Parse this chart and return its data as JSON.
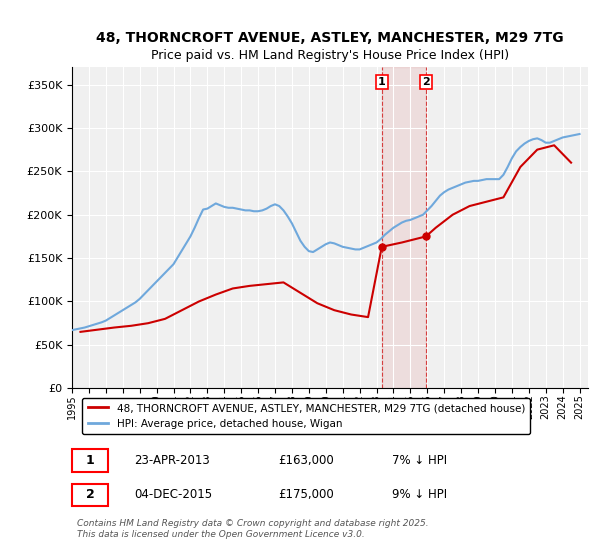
{
  "title_line1": "48, THORNCROFT AVENUE, ASTLEY, MANCHESTER, M29 7TG",
  "title_line2": "Price paid vs. HM Land Registry's House Price Index (HPI)",
  "ylabel": "",
  "yticks": [
    0,
    50000,
    100000,
    150000,
    200000,
    250000,
    300000,
    350000
  ],
  "ytick_labels": [
    "£0",
    "£50K",
    "£100K",
    "£150K",
    "£200K",
    "£250K",
    "£300K",
    "£350K"
  ],
  "xlim_start": 1995.0,
  "xlim_end": 2025.5,
  "ylim_min": 0,
  "ylim_max": 370000,
  "legend_line1": "48, THORNCROFT AVENUE, ASTLEY, MANCHESTER, M29 7TG (detached house)",
  "legend_line2": "HPI: Average price, detached house, Wigan",
  "annotation1_label": "1",
  "annotation1_date": "23-APR-2013",
  "annotation1_price": "£163,000",
  "annotation1_hpi": "7% ↓ HPI",
  "annotation1_year": 2013.31,
  "annotation1_value": 163000,
  "annotation2_label": "2",
  "annotation2_date": "04-DEC-2015",
  "annotation2_price": "£175,000",
  "annotation2_hpi": "9% ↓ HPI",
  "annotation2_year": 2015.92,
  "annotation2_value": 175000,
  "footnote": "Contains HM Land Registry data © Crown copyright and database right 2025.\nThis data is licensed under the Open Government Licence v3.0.",
  "hpi_color": "#6fa8dc",
  "price_color": "#cc0000",
  "background_color": "#ffffff",
  "plot_bg_color": "#f0f0f0",
  "hpi_x": [
    1995,
    1995.25,
    1995.5,
    1995.75,
    1996,
    1996.25,
    1996.5,
    1996.75,
    1997,
    1997.25,
    1997.5,
    1997.75,
    1998,
    1998.25,
    1998.5,
    1998.75,
    1999,
    1999.25,
    1999.5,
    1999.75,
    2000,
    2000.25,
    2000.5,
    2000.75,
    2001,
    2001.25,
    2001.5,
    2001.75,
    2002,
    2002.25,
    2002.5,
    2002.75,
    2003,
    2003.25,
    2003.5,
    2003.75,
    2004,
    2004.25,
    2004.5,
    2004.75,
    2005,
    2005.25,
    2005.5,
    2005.75,
    2006,
    2006.25,
    2006.5,
    2006.75,
    2007,
    2007.25,
    2007.5,
    2007.75,
    2008,
    2008.25,
    2008.5,
    2008.75,
    2009,
    2009.25,
    2009.5,
    2009.75,
    2010,
    2010.25,
    2010.5,
    2010.75,
    2011,
    2011.25,
    2011.5,
    2011.75,
    2012,
    2012.25,
    2012.5,
    2012.75,
    2013,
    2013.25,
    2013.5,
    2013.75,
    2014,
    2014.25,
    2014.5,
    2014.75,
    2015,
    2015.25,
    2015.5,
    2015.75,
    2016,
    2016.25,
    2016.5,
    2016.75,
    2017,
    2017.25,
    2017.5,
    2017.75,
    2018,
    2018.25,
    2018.5,
    2018.75,
    2019,
    2019.25,
    2019.5,
    2019.75,
    2020,
    2020.25,
    2020.5,
    2020.75,
    2021,
    2021.25,
    2021.5,
    2021.75,
    2022,
    2022.25,
    2022.5,
    2022.75,
    2023,
    2023.25,
    2023.5,
    2023.75,
    2024,
    2024.25,
    2024.5,
    2024.75,
    2025
  ],
  "hpi_y": [
    67000,
    68000,
    69000,
    70000,
    71500,
    73000,
    74500,
    76000,
    78000,
    81000,
    84000,
    87000,
    90000,
    93000,
    96000,
    99000,
    103000,
    108000,
    113000,
    118000,
    123000,
    128000,
    133000,
    138000,
    143000,
    151000,
    159000,
    167000,
    175000,
    185000,
    196000,
    206000,
    207000,
    210000,
    213000,
    211000,
    209000,
    208000,
    208000,
    207000,
    206000,
    205000,
    205000,
    204000,
    204000,
    205000,
    207000,
    210000,
    212000,
    210000,
    205000,
    198000,
    190000,
    180000,
    170000,
    163000,
    158000,
    157000,
    160000,
    163000,
    166000,
    168000,
    167000,
    165000,
    163000,
    162000,
    161000,
    160000,
    160000,
    162000,
    164000,
    166000,
    168000,
    172000,
    177000,
    181000,
    185000,
    188000,
    191000,
    193000,
    194000,
    196000,
    198000,
    200000,
    205000,
    210000,
    216000,
    222000,
    226000,
    229000,
    231000,
    233000,
    235000,
    237000,
    238000,
    239000,
    239000,
    240000,
    241000,
    241000,
    241000,
    241000,
    246000,
    255000,
    265000,
    273000,
    278000,
    282000,
    285000,
    287000,
    288000,
    286000,
    283000,
    283000,
    285000,
    287000,
    289000,
    290000,
    291000,
    292000,
    293000
  ],
  "price_x": [
    1995.5,
    1996.5,
    1997.5,
    1998.5,
    1999.5,
    2000.5,
    2001.5,
    2002.5,
    2003.5,
    2004.5,
    2005.5,
    2006.5,
    2007.5,
    2008.5,
    2009.5,
    2010.5,
    2011.5,
    2012.5,
    2013.31,
    2014.5,
    2015.92,
    2016.5,
    2017.5,
    2018.5,
    2019.5,
    2020.5,
    2021.5,
    2022.5,
    2023.5,
    2024.5
  ],
  "price_y": [
    65000,
    67500,
    70000,
    72000,
    75000,
    80000,
    90000,
    100000,
    108000,
    115000,
    118000,
    120000,
    122000,
    110000,
    98000,
    90000,
    85000,
    82000,
    163000,
    168000,
    175000,
    185000,
    200000,
    210000,
    215000,
    220000,
    255000,
    275000,
    280000,
    260000
  ]
}
